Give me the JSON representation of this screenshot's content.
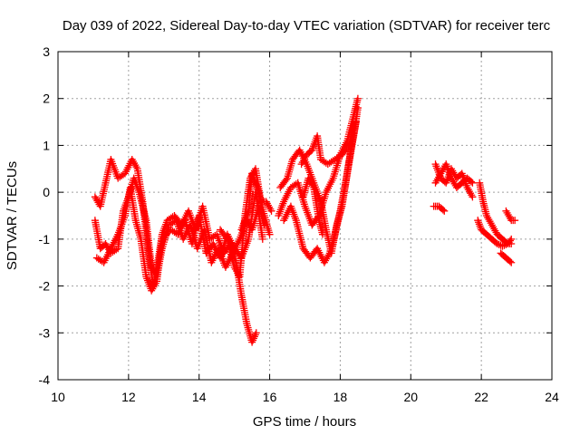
{
  "chart_data": {
    "type": "scatter",
    "title": "Day 039 of 2022, Sidereal Day-to-day VTEC variation (SDTVAR) for receiver terc",
    "xlabel": "GPS time / hours",
    "ylabel": "SDTVAR / TECUs",
    "xlim": [
      10,
      24
    ],
    "ylim": [
      -4,
      3
    ],
    "xticks": [
      "10",
      "12",
      "14",
      "16",
      "18",
      "20",
      "22",
      "24"
    ],
    "yticks": [
      "-4",
      "-3",
      "-2",
      "-1",
      "0",
      "1",
      "2",
      "3"
    ],
    "grid": true,
    "marker": "+",
    "series": [
      {
        "name": "SDTVAR",
        "color": "#ff0000",
        "segments": [
          [
            [
              11.05,
              -0.1
            ],
            [
              11.2,
              -0.3
            ],
            [
              11.35,
              0.2
            ],
            [
              11.5,
              0.7
            ],
            [
              11.7,
              0.3
            ],
            [
              11.9,
              0.4
            ],
            [
              12.1,
              0.7
            ],
            [
              12.25,
              0.5
            ],
            [
              12.4,
              -0.2
            ],
            [
              12.55,
              -1.2
            ],
            [
              12.7,
              -2.0
            ],
            [
              12.85,
              -1.4
            ],
            [
              12.95,
              -0.9
            ],
            [
              13.1,
              -0.6
            ],
            [
              13.3,
              -0.5
            ],
            [
              13.5,
              -0.7
            ],
            [
              13.7,
              -0.4
            ],
            [
              13.9,
              -0.8
            ],
            [
              14.1,
              -0.3
            ],
            [
              14.3,
              -1.0
            ],
            [
              14.5,
              -0.9
            ],
            [
              14.7,
              -1.3
            ],
            [
              14.9,
              -1.1
            ],
            [
              15.05,
              -1.5
            ],
            [
              15.2,
              -2.2
            ],
            [
              15.35,
              -2.8
            ],
            [
              15.5,
              -3.2
            ],
            [
              15.62,
              -3.0
            ]
          ],
          [
            [
              11.05,
              -0.6
            ],
            [
              11.2,
              -1.2
            ],
            [
              11.35,
              -1.1
            ],
            [
              11.5,
              -1.3
            ],
            [
              11.7,
              -1.2
            ],
            [
              11.85,
              -0.4
            ],
            [
              12.0,
              -0.1
            ],
            [
              12.15,
              0.3
            ],
            [
              12.3,
              0.0
            ],
            [
              12.5,
              -0.6
            ],
            [
              12.65,
              -1.6
            ],
            [
              12.8,
              -1.8
            ],
            [
              12.95,
              -1.2
            ],
            [
              13.15,
              -0.7
            ],
            [
              13.35,
              -0.6
            ],
            [
              13.55,
              -1.0
            ],
            [
              13.75,
              -0.7
            ],
            [
              13.95,
              -1.2
            ],
            [
              14.15,
              -0.8
            ],
            [
              14.35,
              -1.5
            ],
            [
              14.55,
              -1.2
            ],
            [
              14.75,
              -1.6
            ],
            [
              14.95,
              -1.3
            ],
            [
              15.15,
              -1.0
            ],
            [
              15.35,
              -0.6
            ],
            [
              15.5,
              -0.8
            ],
            [
              15.7,
              -0.3
            ],
            [
              15.85,
              -0.7
            ]
          ],
          [
            [
              11.1,
              -1.4
            ],
            [
              11.3,
              -1.5
            ],
            [
              11.5,
              -1.2
            ],
            [
              11.7,
              -0.9
            ],
            [
              11.9,
              -0.5
            ],
            [
              12.05,
              0.1
            ],
            [
              12.2,
              -0.6
            ],
            [
              12.35,
              -1.0
            ],
            [
              12.5,
              -1.8
            ],
            [
              12.65,
              -2.1
            ],
            [
              12.8,
              -1.9
            ],
            [
              12.95,
              -1.0
            ],
            [
              13.2,
              -0.8
            ],
            [
              13.4,
              -0.9
            ],
            [
              13.6,
              -0.6
            ],
            [
              13.8,
              -1.1
            ],
            [
              14.0,
              -0.5
            ],
            [
              14.2,
              -1.3
            ],
            [
              14.4,
              -1.1
            ],
            [
              14.6,
              -1.4
            ],
            [
              14.8,
              -0.9
            ],
            [
              15.0,
              -1.2
            ],
            [
              15.2,
              -1.4
            ],
            [
              15.4,
              -1.0
            ],
            [
              15.6,
              0.0
            ],
            [
              15.8,
              -1.0
            ]
          ],
          [
            [
              14.6,
              -0.8
            ],
            [
              14.8,
              -1.0
            ],
            [
              15.0,
              -1.6
            ],
            [
              15.15,
              -1.8
            ],
            [
              15.3,
              -0.5
            ],
            [
              15.45,
              0.3
            ],
            [
              15.6,
              0.5
            ],
            [
              15.75,
              -0.2
            ],
            [
              15.9,
              -0.2
            ],
            [
              16.05,
              -0.4
            ]
          ],
          [
            [
              15.2,
              -0.8
            ],
            [
              15.4,
              -0.4
            ],
            [
              15.5,
              0.4
            ],
            [
              15.65,
              0.1
            ],
            [
              15.85,
              -0.5
            ],
            [
              16.0,
              -0.9
            ]
          ],
          [
            [
              16.25,
              -0.5
            ],
            [
              16.4,
              -0.2
            ],
            [
              16.6,
              0.1
            ],
            [
              16.8,
              0.2
            ],
            [
              17.0,
              -0.3
            ],
            [
              17.2,
              -0.7
            ],
            [
              17.4,
              -0.5
            ],
            [
              17.6,
              0.0
            ],
            [
              17.8,
              0.3
            ],
            [
              18.0,
              0.8
            ],
            [
              18.2,
              1.1
            ],
            [
              18.4,
              1.7
            ],
            [
              18.5,
              2.0
            ]
          ],
          [
            [
              16.3,
              0.1
            ],
            [
              16.5,
              0.3
            ],
            [
              16.65,
              0.7
            ],
            [
              16.85,
              0.9
            ],
            [
              17.05,
              0.6
            ],
            [
              17.25,
              0.2
            ],
            [
              17.45,
              -0.2
            ],
            [
              17.6,
              -0.8
            ],
            [
              17.75,
              -1.3
            ],
            [
              17.9,
              -0.7
            ],
            [
              18.05,
              -0.3
            ],
            [
              18.2,
              0.4
            ],
            [
              18.4,
              1.3
            ],
            [
              18.5,
              1.8
            ]
          ],
          [
            [
              16.4,
              -0.6
            ],
            [
              16.6,
              -0.3
            ],
            [
              16.75,
              -0.6
            ],
            [
              16.95,
              -1.2
            ],
            [
              17.15,
              -1.4
            ],
            [
              17.35,
              -1.2
            ],
            [
              17.55,
              -1.5
            ],
            [
              17.7,
              -1.3
            ],
            [
              17.85,
              -0.9
            ],
            [
              18.0,
              -0.4
            ],
            [
              18.15,
              0.2
            ],
            [
              18.3,
              0.9
            ],
            [
              18.45,
              1.5
            ]
          ],
          [
            [
              16.9,
              0.6
            ],
            [
              17.05,
              0.8
            ],
            [
              17.2,
              0.9
            ],
            [
              17.35,
              1.2
            ],
            [
              17.45,
              0.7
            ],
            [
              17.65,
              0.6
            ],
            [
              17.85,
              0.7
            ],
            [
              18.05,
              0.8
            ],
            [
              18.25,
              1.0
            ],
            [
              18.4,
              1.4
            ]
          ],
          [
            [
              16.95,
              -0.1
            ],
            [
              17.1,
              0.3
            ],
            [
              17.25,
              0.1
            ],
            [
              17.4,
              -0.6
            ],
            [
              17.5,
              -0.9
            ]
          ],
          [
            [
              20.7,
              0.6
            ],
            [
              20.85,
              0.3
            ],
            [
              21.0,
              0.2
            ],
            [
              21.15,
              0.5
            ],
            [
              21.3,
              0.3
            ],
            [
              21.45,
              0.4
            ],
            [
              21.6,
              0.1
            ],
            [
              21.75,
              -0.1
            ]
          ],
          [
            [
              20.7,
              0.2
            ],
            [
              20.85,
              0.4
            ],
            [
              21.0,
              0.6
            ],
            [
              21.15,
              0.3
            ],
            [
              21.3,
              0.1
            ],
            [
              21.45,
              0.2
            ],
            [
              21.6,
              0.3
            ],
            [
              21.75,
              0.2
            ]
          ],
          [
            [
              20.65,
              -0.3
            ],
            [
              20.8,
              -0.3
            ],
            [
              20.95,
              -0.4
            ]
          ],
          [
            [
              21.9,
              -0.6
            ],
            [
              22.0,
              -0.8
            ],
            [
              22.15,
              -0.9
            ],
            [
              22.3,
              -1.0
            ],
            [
              22.45,
              -1.1
            ],
            [
              22.6,
              -1.15
            ],
            [
              22.75,
              -1.1
            ],
            [
              22.85,
              -1.1
            ]
          ],
          [
            [
              21.95,
              0.2
            ],
            [
              22.05,
              -0.2
            ],
            [
              22.15,
              -0.5
            ],
            [
              22.3,
              -0.7
            ],
            [
              22.45,
              -0.9
            ],
            [
              22.6,
              -1.0
            ],
            [
              22.75,
              -1.1
            ],
            [
              22.85,
              -1.0
            ]
          ],
          [
            [
              22.55,
              -1.3
            ],
            [
              22.7,
              -1.4
            ],
            [
              22.85,
              -1.5
            ]
          ],
          [
            [
              22.7,
              -0.4
            ],
            [
              22.85,
              -0.6
            ],
            [
              22.95,
              -0.6
            ]
          ]
        ]
      }
    ]
  }
}
